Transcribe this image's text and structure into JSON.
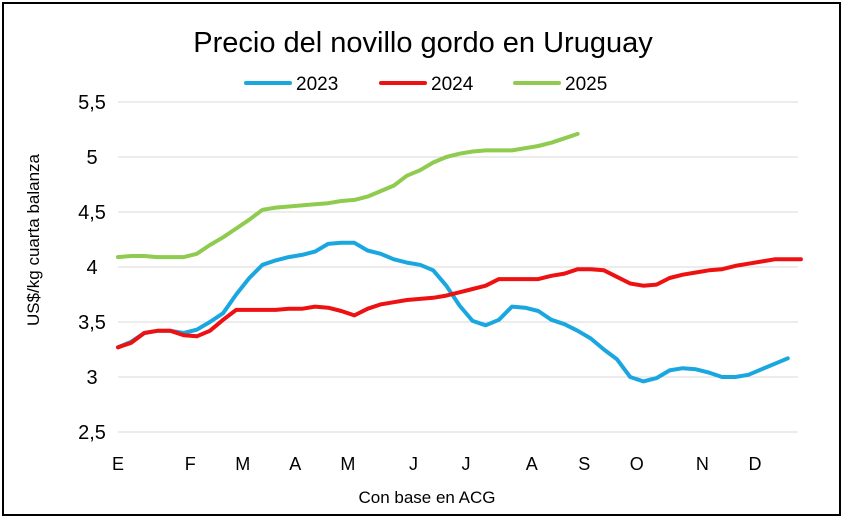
{
  "chart_data": {
    "type": "line",
    "title": "Precio del novillo gordo en Uruguay",
    "xlabel": "Con base en ACG",
    "ylabel": "US$/kg cuarta balanza",
    "ylim": [
      2.5,
      5.5
    ],
    "ytick_labels": [
      "5,5",
      "5",
      "4,5",
      "4",
      "3,5",
      "3",
      "2,5"
    ],
    "ytick_values": [
      5.5,
      5,
      4.5,
      4,
      3.5,
      3,
      2.5
    ],
    "grid": true,
    "legend_position": "top",
    "x_range": [
      1,
      52
    ],
    "xtick_labels": [
      "E",
      "F",
      "M",
      "A",
      "M",
      "J",
      "J",
      "A",
      "S",
      "O",
      "N",
      "D"
    ],
    "xtick_values": [
      1,
      6.5,
      10.5,
      14.5,
      18.5,
      23.5,
      27.5,
      32.5,
      36.5,
      40.5,
      45.5,
      49.5
    ],
    "series": [
      {
        "name": "2023",
        "color": "#1aa7e0",
        "x": [
          1,
          2,
          3,
          4,
          5,
          6,
          7,
          8,
          9,
          10,
          11,
          12,
          13,
          14,
          15,
          16,
          17,
          18,
          19,
          20,
          21,
          22,
          23,
          24,
          25,
          26,
          27,
          28,
          29,
          30,
          31,
          32,
          33,
          34,
          35,
          36,
          37,
          38,
          39,
          40,
          41,
          42,
          43,
          44,
          45,
          46,
          47,
          48,
          49,
          50,
          51,
          52
        ],
        "values": [
          3.27,
          3.32,
          3.4,
          3.42,
          3.42,
          3.4,
          3.43,
          3.5,
          3.58,
          3.75,
          3.9,
          4.02,
          4.06,
          4.09,
          4.11,
          4.14,
          4.21,
          4.22,
          4.22,
          4.15,
          4.12,
          4.07,
          4.04,
          4.02,
          3.97,
          3.83,
          3.65,
          3.51,
          3.47,
          3.52,
          3.64,
          3.63,
          3.6,
          3.52,
          3.48,
          3.42,
          3.35,
          3.25,
          3.16,
          3.0,
          2.96,
          2.99,
          3.06,
          3.08,
          3.07,
          3.04,
          3.0,
          3.0,
          3.02,
          3.07,
          3.12,
          3.17
        ]
      },
      {
        "name": "2024",
        "color": "#ee1111",
        "x": [
          1,
          2,
          3,
          4,
          5,
          6,
          7,
          8,
          9,
          10,
          11,
          12,
          13,
          14,
          15,
          16,
          17,
          18,
          19,
          20,
          21,
          22,
          23,
          24,
          25,
          26,
          27,
          28,
          29,
          30,
          31,
          32,
          33,
          34,
          35,
          36,
          37,
          38,
          39,
          40,
          41,
          42,
          43,
          44,
          45,
          46,
          47,
          48,
          49,
          50,
          51,
          52,
          53
        ],
        "values": [
          3.27,
          3.31,
          3.4,
          3.42,
          3.42,
          3.38,
          3.37,
          3.42,
          3.52,
          3.61,
          3.61,
          3.61,
          3.61,
          3.62,
          3.62,
          3.64,
          3.63,
          3.6,
          3.56,
          3.62,
          3.66,
          3.68,
          3.7,
          3.71,
          3.72,
          3.74,
          3.77,
          3.8,
          3.83,
          3.89,
          3.89,
          3.89,
          3.89,
          3.92,
          3.94,
          3.98,
          3.98,
          3.97,
          3.91,
          3.85,
          3.83,
          3.84,
          3.9,
          3.93,
          3.95,
          3.97,
          3.98,
          4.01,
          4.03,
          4.05,
          4.07,
          4.07,
          4.07
        ]
      },
      {
        "name": "2025",
        "color": "#8fcb4f",
        "x": [
          1,
          2,
          3,
          4,
          5,
          6,
          7,
          8,
          9,
          10,
          11,
          12,
          13,
          14,
          15,
          16,
          17,
          18,
          19,
          20,
          21,
          22,
          23,
          24,
          25,
          26,
          27,
          28,
          29,
          30,
          31,
          32,
          33,
          34,
          35,
          36
        ],
        "values": [
          4.09,
          4.1,
          4.1,
          4.09,
          4.09,
          4.09,
          4.12,
          4.2,
          4.27,
          4.35,
          4.43,
          4.52,
          4.54,
          4.55,
          4.56,
          4.57,
          4.58,
          4.6,
          4.61,
          4.64,
          4.69,
          4.74,
          4.83,
          4.88,
          4.95,
          5.0,
          5.03,
          5.05,
          5.06,
          5.06,
          5.06,
          5.08,
          5.1,
          5.13,
          5.17,
          5.21
        ]
      }
    ]
  }
}
